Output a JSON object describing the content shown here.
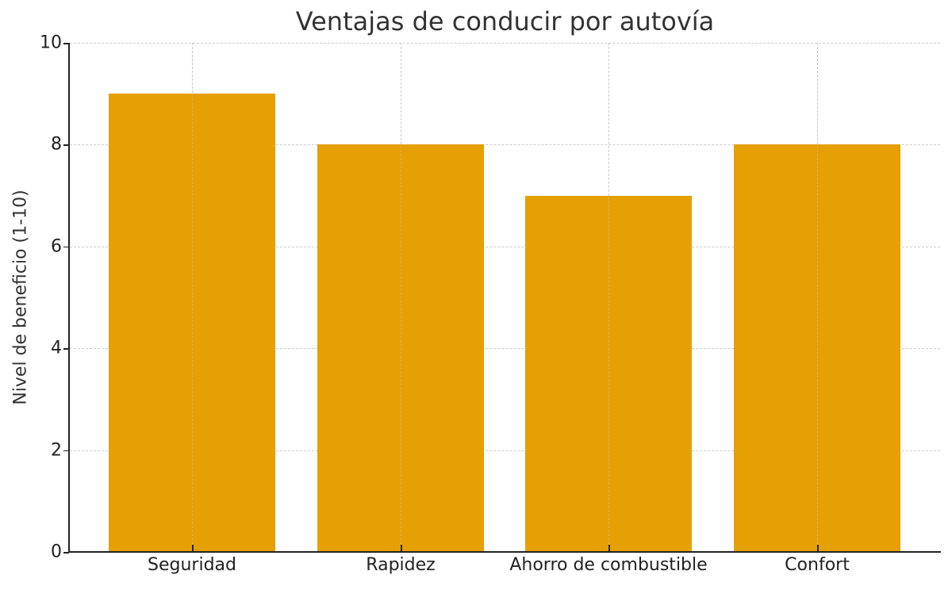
{
  "chart_data": {
    "type": "bar",
    "title": "Ventajas de conducir por autovía",
    "xlabel": "",
    "ylabel": "Nivel de beneficio (1-10)",
    "categories": [
      "Seguridad",
      "Rapidez",
      "Ahorro de combustible",
      "Confort"
    ],
    "values": [
      9,
      8,
      7,
      8
    ],
    "ylim": [
      0,
      10
    ],
    "yticks": [
      "0",
      "2",
      "4",
      "6",
      "8",
      "10"
    ],
    "grid": true,
    "legend": null,
    "bar_color": "#e5a003"
  }
}
